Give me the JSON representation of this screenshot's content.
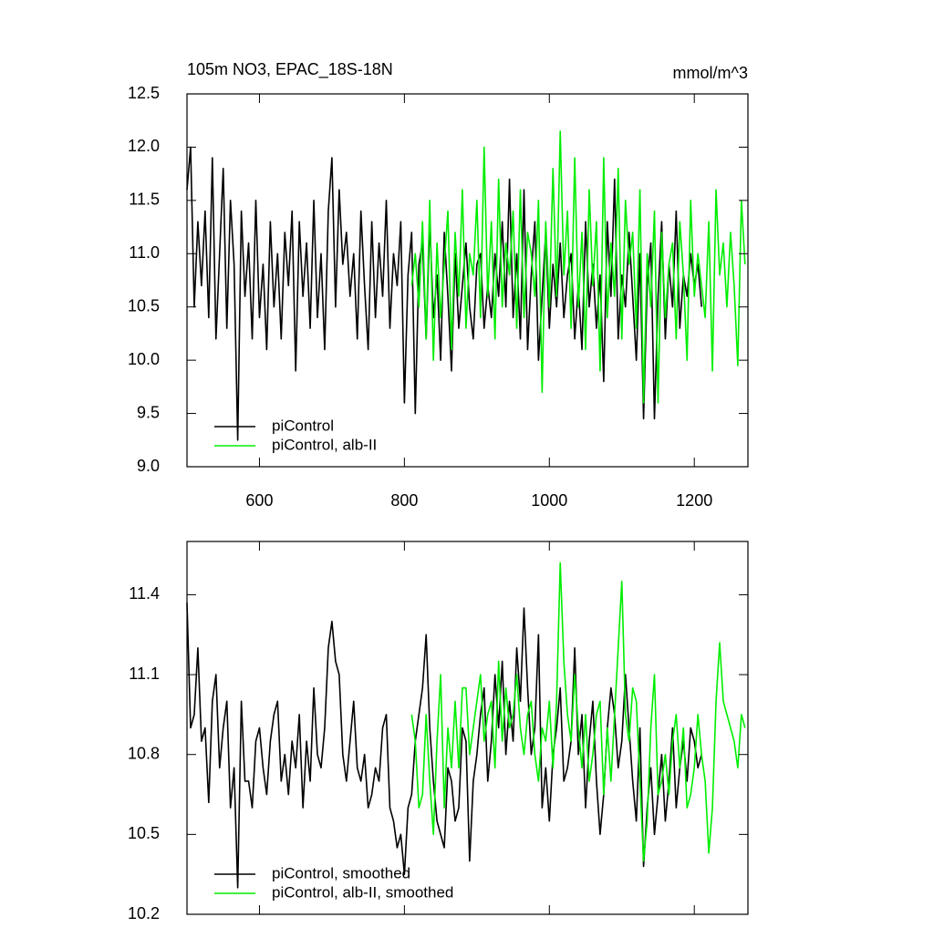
{
  "chart_data": [
    {
      "type": "line",
      "title": "105m NO3, EPAC_18S-18N",
      "units": "mmol/m^3",
      "xlim": [
        500,
        1274
      ],
      "xticks": [
        600,
        800,
        1000,
        1200
      ],
      "show_xtick_labels": true,
      "ylim": [
        9,
        12.5
      ],
      "yticks": [
        {
          "value": 9,
          "label": "9.0"
        },
        9.5,
        {
          "value": 10,
          "label": "10.0"
        },
        10.5,
        {
          "value": 11,
          "label": "11.0"
        },
        11.5,
        {
          "value": 12,
          "label": "12.0"
        },
        12.5
      ],
      "legend": "lower left",
      "series": [
        {
          "name": "piControl",
          "color": "#000000",
          "x": [
            500,
            505,
            510,
            515,
            520,
            525,
            530,
            535,
            540,
            545,
            550,
            555,
            560,
            565,
            570,
            575,
            580,
            585,
            590,
            595,
            600,
            605,
            610,
            615,
            620,
            625,
            630,
            635,
            640,
            645,
            650,
            655,
            660,
            665,
            670,
            675,
            680,
            685,
            690,
            695,
            700,
            705,
            710,
            715,
            720,
            725,
            730,
            735,
            740,
            745,
            750,
            755,
            760,
            765,
            770,
            775,
            780,
            785,
            790,
            795,
            800,
            805,
            810,
            815,
            820,
            825,
            830,
            835,
            840,
            845,
            850,
            855,
            860,
            865,
            870,
            875,
            880,
            885,
            890,
            895,
            900,
            905,
            910,
            915,
            920,
            925,
            930,
            935,
            940,
            945,
            950,
            955,
            960,
            965,
            970,
            975,
            980,
            985,
            990,
            995,
            1000,
            1005,
            1010,
            1015,
            1020,
            1025,
            1030,
            1035,
            1040,
            1045,
            1050,
            1055,
            1060,
            1065,
            1070,
            1075,
            1080,
            1085,
            1090,
            1095,
            1100,
            1105,
            1110,
            1115,
            1120,
            1125,
            1130,
            1135,
            1140,
            1145,
            1150,
            1155,
            1160,
            1165,
            1170,
            1175,
            1180,
            1185,
            1190,
            1195,
            1200,
            1205,
            1210
          ],
          "values": [
            11.6,
            12.0,
            10.5,
            11.3,
            10.7,
            11.4,
            10.4,
            11.9,
            10.2,
            11.0,
            11.8,
            10.3,
            11.5,
            10.9,
            9.25,
            11.4,
            10.6,
            11.1,
            10.2,
            11.5,
            10.4,
            10.9,
            10.1,
            11.3,
            10.5,
            11.0,
            10.2,
            11.2,
            10.7,
            11.4,
            9.9,
            11.3,
            10.6,
            11.1,
            10.3,
            11.5,
            10.4,
            11.0,
            10.1,
            11.4,
            11.9,
            10.5,
            11.6,
            10.9,
            11.2,
            10.6,
            11.0,
            10.2,
            11.4,
            10.7,
            10.1,
            11.3,
            10.4,
            11.1,
            10.6,
            11.5,
            10.3,
            11.0,
            10.7,
            11.3,
            9.6,
            10.8,
            11.2,
            9.5,
            10.9,
            11.1,
            10.2,
            11.3,
            10.4,
            10.8,
            10.0,
            11.2,
            10.6,
            9.9,
            11.0,
            10.3,
            10.7,
            11.1,
            10.5,
            10.2,
            10.9,
            11.0,
            10.3,
            10.7,
            10.4,
            11.0,
            10.6,
            11.3,
            10.5,
            11.7,
            10.4,
            11.0,
            10.2,
            11.6,
            10.1,
            10.8,
            11.3,
            10.0,
            10.6,
            11.2,
            10.3,
            10.9,
            10.5,
            11.1,
            10.4,
            10.8,
            11.0,
            10.2,
            10.7,
            10.1,
            11.3,
            10.5,
            10.9,
            10.3,
            10.8,
            9.8,
            11.3,
            10.6,
            11.7,
            10.2,
            10.8,
            10.5,
            11.2,
            10.6,
            10.0,
            11.0,
            9.45,
            10.7,
            11.1,
            9.45,
            10.6,
            11.3,
            10.2,
            10.9,
            10.5,
            11.4,
            10.3,
            10.8,
            10.6,
            11.0,
            10.7,
            10.9,
            10.5
          ]
        },
        {
          "name": "piControl, alb-II",
          "color": "#00ee00",
          "x": [
            810,
            815,
            820,
            825,
            830,
            835,
            840,
            845,
            850,
            855,
            860,
            865,
            870,
            875,
            880,
            885,
            890,
            895,
            900,
            905,
            910,
            915,
            920,
            925,
            930,
            935,
            940,
            945,
            950,
            955,
            960,
            965,
            970,
            975,
            980,
            985,
            990,
            995,
            1000,
            1005,
            1010,
            1015,
            1020,
            1025,
            1030,
            1035,
            1040,
            1045,
            1050,
            1055,
            1060,
            1065,
            1070,
            1075,
            1080,
            1085,
            1090,
            1095,
            1100,
            1105,
            1110,
            1115,
            1120,
            1125,
            1130,
            1135,
            1140,
            1145,
            1150,
            1155,
            1160,
            1165,
            1170,
            1175,
            1180,
            1185,
            1190,
            1195,
            1200,
            1205,
            1210,
            1215,
            1220,
            1225,
            1230,
            1235,
            1240,
            1245,
            1250,
            1255,
            1260,
            1265,
            1270
          ],
          "values": [
            10.7,
            11.0,
            10.5,
            11.3,
            10.2,
            11.5,
            10.0,
            11.1,
            10.4,
            10.9,
            11.4,
            10.1,
            11.2,
            10.6,
            11.6,
            10.3,
            11.0,
            10.8,
            11.5,
            10.4,
            12.0,
            10.6,
            11.3,
            10.2,
            11.7,
            10.5,
            11.1,
            10.8,
            11.4,
            10.3,
            11.6,
            10.4,
            11.2,
            11.0,
            10.6,
            11.5,
            9.7,
            11.3,
            10.5,
            11.8,
            10.6,
            12.15,
            10.8,
            11.4,
            10.3,
            11.9,
            10.5,
            11.2,
            10.1,
            11.6,
            10.7,
            11.3,
            9.9,
            11.9,
            10.4,
            11.1,
            10.6,
            11.8,
            10.2,
            11.5,
            10.9,
            11.2,
            10.3,
            11.6,
            9.6,
            11.0,
            10.5,
            11.4,
            9.6,
            11.2,
            10.4,
            10.9,
            11.1,
            10.2,
            11.3,
            10.8,
            10.0,
            11.5,
            10.6,
            11.0,
            10.7,
            10.4,
            11.3,
            9.9,
            11.6,
            10.8,
            11.1,
            10.5,
            11.2,
            10.7,
            9.95,
            11.5,
            10.9
          ]
        }
      ]
    },
    {
      "type": "line",
      "xlim": [
        500,
        1274
      ],
      "xticks": [
        600,
        800,
        1000,
        1200
      ],
      "show_xtick_labels": false,
      "ylim": [
        10.2,
        11.6
      ],
      "yticks": [
        10.2,
        10.5,
        10.8,
        11.1,
        11.4
      ],
      "legend": "lower left",
      "series": [
        {
          "name": "piControl, smoothed",
          "color": "#000000",
          "x": [
            500,
            505,
            510,
            515,
            520,
            525,
            530,
            535,
            540,
            545,
            550,
            555,
            560,
            565,
            570,
            575,
            580,
            585,
            590,
            595,
            600,
            605,
            610,
            615,
            620,
            625,
            630,
            635,
            640,
            645,
            650,
            655,
            660,
            665,
            670,
            675,
            680,
            685,
            690,
            695,
            700,
            705,
            710,
            715,
            720,
            725,
            730,
            735,
            740,
            745,
            750,
            755,
            760,
            765,
            770,
            775,
            780,
            785,
            790,
            795,
            800,
            805,
            810,
            815,
            820,
            825,
            830,
            835,
            840,
            845,
            850,
            855,
            860,
            865,
            870,
            875,
            880,
            885,
            890,
            895,
            900,
            905,
            910,
            915,
            920,
            925,
            930,
            935,
            940,
            945,
            950,
            955,
            960,
            965,
            970,
            975,
            980,
            985,
            990,
            995,
            1000,
            1005,
            1010,
            1015,
            1020,
            1025,
            1030,
            1035,
            1040,
            1045,
            1050,
            1055,
            1060,
            1065,
            1070,
            1075,
            1080,
            1085,
            1090,
            1095,
            1100,
            1105,
            1110,
            1115,
            1120,
            1125,
            1130,
            1135,
            1140,
            1145,
            1150,
            1155,
            1160,
            1165,
            1170,
            1175,
            1180,
            1185,
            1190,
            1195,
            1200,
            1205,
            1210
          ],
          "values": [
            11.37,
            10.9,
            10.95,
            11.2,
            10.85,
            10.9,
            10.62,
            11.0,
            11.1,
            10.75,
            10.9,
            11.0,
            10.6,
            10.75,
            10.3,
            11.0,
            10.7,
            10.7,
            10.6,
            10.85,
            10.9,
            10.75,
            10.65,
            10.85,
            10.95,
            11.0,
            10.7,
            10.8,
            10.65,
            10.85,
            10.75,
            10.95,
            10.6,
            10.85,
            10.7,
            11.05,
            10.8,
            10.75,
            10.9,
            11.2,
            11.3,
            11.15,
            11.1,
            10.8,
            10.7,
            10.85,
            11.0,
            10.75,
            10.7,
            10.8,
            10.6,
            10.65,
            10.75,
            10.7,
            10.9,
            10.95,
            10.6,
            10.55,
            10.45,
            10.5,
            10.35,
            10.6,
            10.65,
            10.85,
            10.95,
            11.05,
            11.25,
            10.9,
            10.7,
            10.55,
            10.5,
            10.45,
            10.75,
            10.7,
            10.55,
            10.6,
            10.9,
            10.85,
            10.4,
            10.7,
            10.8,
            10.95,
            11.05,
            10.7,
            10.85,
            11.1,
            10.9,
            11.15,
            10.8,
            11.0,
            10.85,
            11.2,
            11.0,
            11.35,
            11.05,
            10.8,
            10.9,
            11.25,
            10.6,
            10.75,
            10.55,
            10.8,
            10.9,
            11.05,
            10.7,
            10.75,
            10.85,
            11.2,
            10.8,
            10.95,
            10.6,
            10.85,
            11.0,
            10.7,
            10.5,
            10.65,
            10.9,
            11.05,
            10.95,
            10.75,
            10.85,
            11.1,
            10.9,
            10.7,
            10.55,
            10.9,
            10.38,
            10.6,
            10.75,
            10.5,
            10.65,
            10.8,
            10.55,
            10.7,
            10.9,
            10.6,
            10.75,
            10.85,
            10.7,
            10.9,
            10.85,
            10.75,
            10.8
          ]
        },
        {
          "name": "piControl, alb-II, smoothed",
          "color": "#00ee00",
          "x": [
            810,
            815,
            820,
            825,
            830,
            835,
            840,
            845,
            850,
            855,
            860,
            865,
            870,
            875,
            880,
            885,
            890,
            895,
            900,
            905,
            910,
            915,
            920,
            925,
            930,
            935,
            940,
            945,
            950,
            955,
            960,
            965,
            970,
            975,
            980,
            985,
            990,
            995,
            1000,
            1005,
            1010,
            1015,
            1020,
            1025,
            1030,
            1035,
            1040,
            1045,
            1050,
            1055,
            1060,
            1065,
            1070,
            1075,
            1080,
            1085,
            1090,
            1095,
            1100,
            1105,
            1110,
            1115,
            1120,
            1125,
            1130,
            1135,
            1140,
            1145,
            1150,
            1155,
            1160,
            1165,
            1170,
            1175,
            1180,
            1185,
            1190,
            1195,
            1200,
            1205,
            1210,
            1215,
            1220,
            1225,
            1230,
            1235,
            1240,
            1245,
            1250,
            1255,
            1260,
            1265,
            1270
          ],
          "values": [
            10.95,
            10.85,
            10.6,
            10.65,
            10.95,
            10.7,
            10.5,
            10.85,
            11.1,
            10.6,
            10.9,
            10.75,
            11.0,
            10.75,
            11.05,
            11.05,
            10.8,
            10.9,
            11.0,
            11.1,
            10.85,
            10.95,
            11.0,
            10.75,
            11.15,
            10.85,
            11.05,
            10.9,
            10.95,
            11.1,
            10.9,
            10.8,
            10.95,
            11.0,
            10.8,
            10.7,
            10.9,
            10.85,
            11.0,
            10.75,
            11.0,
            11.52,
            11.15,
            10.95,
            10.85,
            11.1,
            10.9,
            10.75,
            10.95,
            10.7,
            10.8,
            10.95,
            11.0,
            10.65,
            10.9,
            10.7,
            10.95,
            11.2,
            11.45,
            10.95,
            10.85,
            11.05,
            11.0,
            10.7,
            10.4,
            10.55,
            10.9,
            11.1,
            10.65,
            10.7,
            10.8,
            10.65,
            10.85,
            10.95,
            10.75,
            10.9,
            10.6,
            10.65,
            10.75,
            10.95,
            10.8,
            10.7,
            10.43,
            10.6,
            11.0,
            11.22,
            11.0,
            10.95,
            10.9,
            10.85,
            10.75,
            10.95,
            10.9
          ]
        }
      ]
    }
  ]
}
